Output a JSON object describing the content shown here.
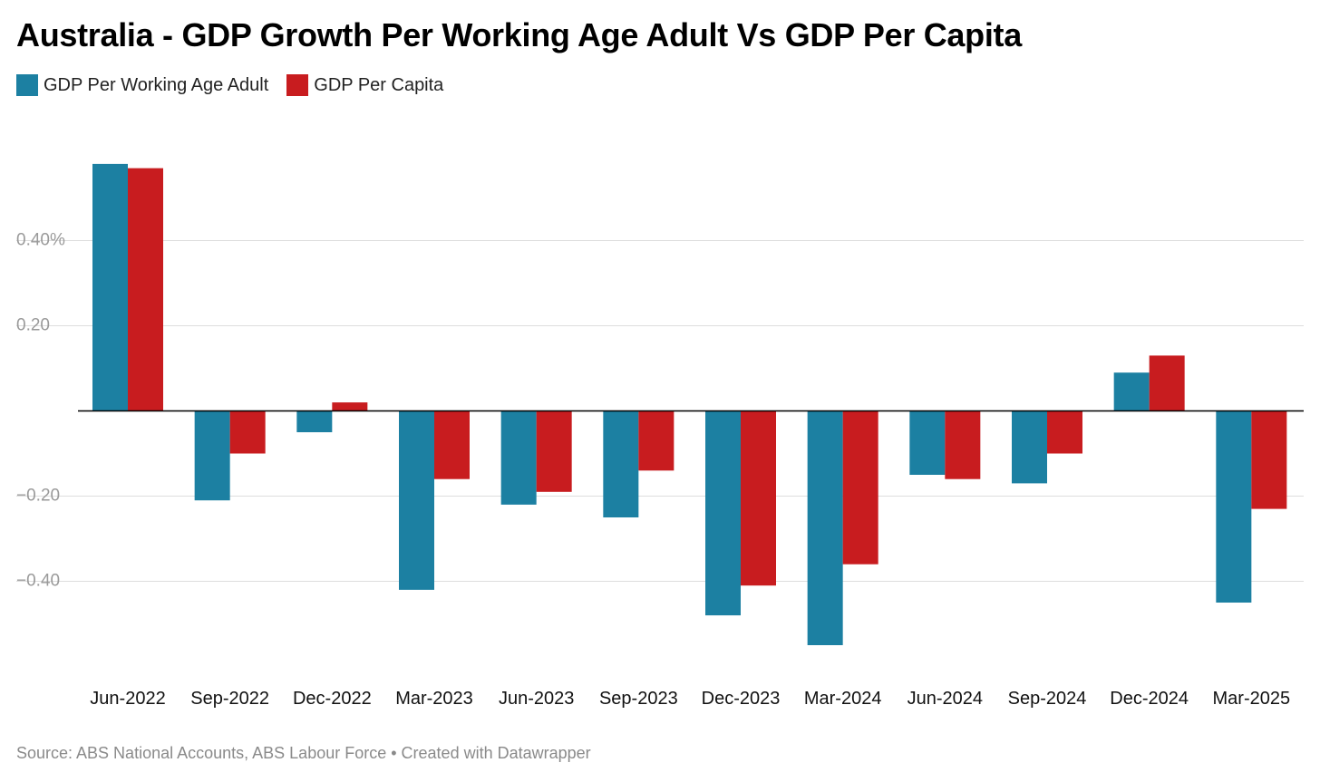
{
  "title": "Australia - GDP Growth Per Working Age Adult Vs GDP Per Capita",
  "source": "Source: ABS National Accounts, ABS Labour Force • Created with Datawrapper",
  "colors": {
    "series1": "#1c80a2",
    "series2": "#c81c1f",
    "grid": "#dddddd",
    "zero": "#000000"
  },
  "chart_data": {
    "type": "bar",
    "categories": [
      "Jun-2022",
      "Sep-2022",
      "Dec-2022",
      "Mar-2023",
      "Jun-2023",
      "Sep-2023",
      "Dec-2023",
      "Mar-2024",
      "Jun-2024",
      "Sep-2024",
      "Dec-2024",
      "Mar-2025"
    ],
    "series": [
      {
        "name": "GDP Per Working Age Adult",
        "color": "#1c80a2",
        "values": [
          0.58,
          -0.21,
          -0.05,
          -0.42,
          -0.22,
          -0.25,
          -0.48,
          -0.55,
          -0.15,
          -0.17,
          0.09,
          -0.45
        ]
      },
      {
        "name": "GDP Per Capita",
        "color": "#c81c1f",
        "values": [
          0.57,
          -0.1,
          0.02,
          -0.16,
          -0.19,
          -0.14,
          -0.41,
          -0.36,
          -0.16,
          -0.1,
          0.13,
          -0.23
        ]
      }
    ],
    "yticks": [
      {
        "value": 0.4,
        "label": "0.40%"
      },
      {
        "value": 0.2,
        "label": "0.20"
      },
      {
        "value": -0.2,
        "label": "−0.20"
      },
      {
        "value": -0.4,
        "label": "−0.40"
      }
    ],
    "legend_position": "top-left",
    "grid": true
  }
}
